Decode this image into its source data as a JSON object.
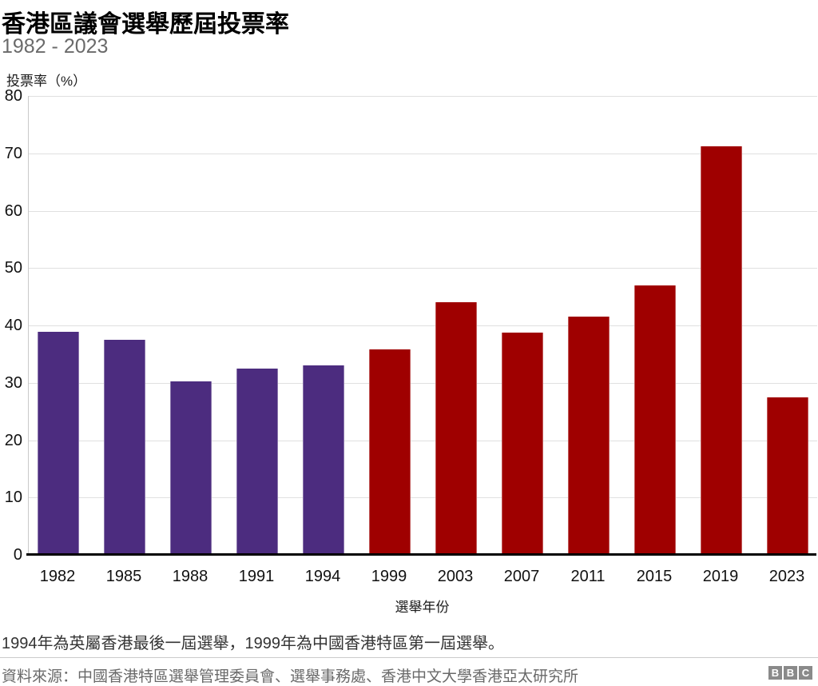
{
  "header": {
    "title": "香港區議會選舉歷屆投票率",
    "subtitle": "1982 - 2023"
  },
  "chart_data": {
    "type": "bar",
    "title": "香港區議會選舉歷屆投票率",
    "subtitle": "1982 - 2023",
    "ylabel": "投票率（%）",
    "xlabel": "選舉年份",
    "ylim": [
      0,
      80
    ],
    "ytick_step": 10,
    "grid": true,
    "legend_position": "none",
    "categories": [
      "1982",
      "1985",
      "1988",
      "1991",
      "1994",
      "1999",
      "2003",
      "2007",
      "2011",
      "2015",
      "2019",
      "2023"
    ],
    "values": [
      38.9,
      37.5,
      30.3,
      32.5,
      33.1,
      35.8,
      44.1,
      38.8,
      41.5,
      47.0,
      71.2,
      27.5
    ],
    "bar_colors": [
      "#4c2c7f",
      "#4c2c7f",
      "#4c2c7f",
      "#4c2c7f",
      "#4c2c7f",
      "#9f0000",
      "#9f0000",
      "#9f0000",
      "#9f0000",
      "#9f0000",
      "#9f0000",
      "#9f0000"
    ],
    "colors": {
      "colonial_era_purple": "#4c2c7f",
      "sar_era_red": "#9f0000"
    }
  },
  "footnote": "1994年為英屬香港最後一屆選舉，1999年為中國香港特區第一屆選舉。",
  "source": "資料來源：中國香港特區選舉管理委員會、選舉事務處、香港中文大學香港亞太研究所",
  "logo": {
    "letters": [
      "B",
      "B",
      "C"
    ]
  }
}
